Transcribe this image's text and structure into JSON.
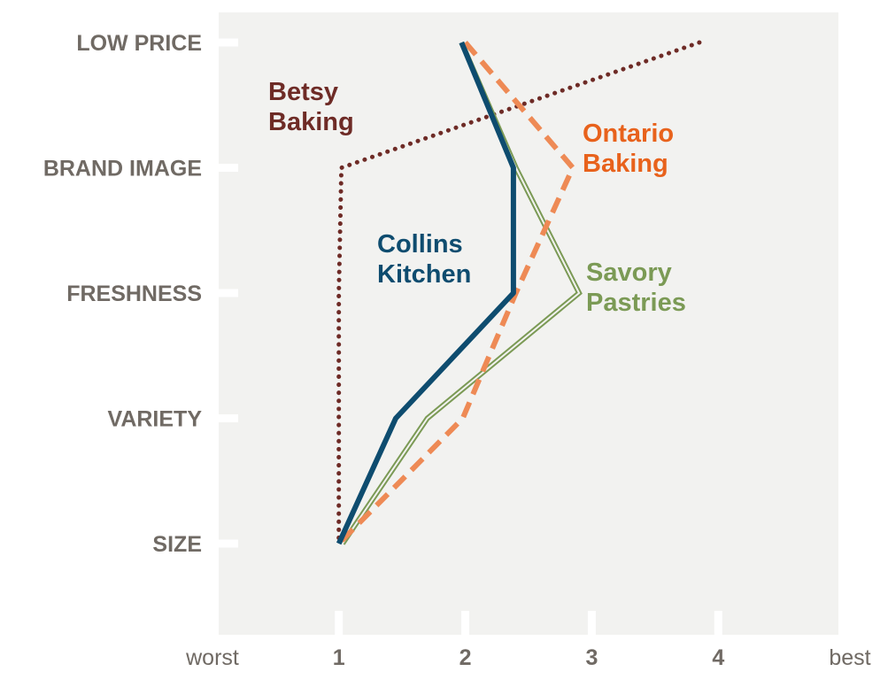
{
  "chart_data": {
    "type": "line",
    "orientation": "horizontal",
    "categories": [
      "LOW PRICE",
      "BRAND IMAGE",
      "FRESHNESS",
      "VARIETY",
      "SIZE"
    ],
    "x_ticks": [
      1,
      2,
      3,
      4
    ],
    "x_tick_labels": [
      "1",
      "2",
      "3",
      "4"
    ],
    "x_end_labels": {
      "low": "worst",
      "high": "best"
    },
    "xlim": [
      0.05,
      4.95
    ],
    "grid": false,
    "background": "#f2f2f0",
    "series": [
      {
        "name": "Betsy Baking",
        "label_lines": [
          "Betsy",
          "Baking"
        ],
        "color": "#6e2b26",
        "style": "dotted",
        "values": [
          3.85,
          1.02,
          1.0,
          1.0,
          1.0
        ]
      },
      {
        "name": "Ontario Baking",
        "label_lines": [
          "Ontario",
          "Baking"
        ],
        "color": "#ee8a55",
        "label_color": "#e8621c",
        "style": "dashed",
        "values": [
          2.0,
          2.85,
          2.4,
          1.98,
          1.0
        ]
      },
      {
        "name": "Collins Kitchen",
        "label_lines": [
          "Collins",
          "Kitchen"
        ],
        "color": "#0e4c6f",
        "style": "solid",
        "values": [
          1.97,
          2.38,
          2.38,
          1.45,
          1.0
        ]
      },
      {
        "name": "Savory Pastries",
        "label_lines": [
          "Savory",
          "Pastries"
        ],
        "color": "#7b9a55",
        "style": "double",
        "values": [
          1.97,
          2.4,
          2.9,
          1.7,
          1.03
        ]
      }
    ]
  }
}
